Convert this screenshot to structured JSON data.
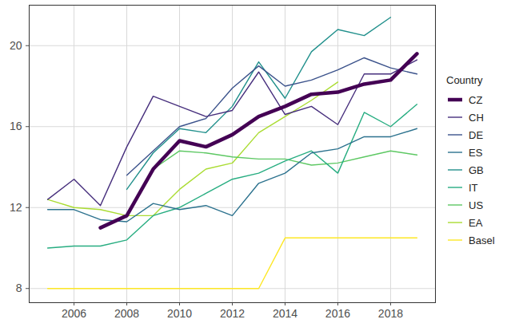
{
  "chart_data": {
    "type": "line",
    "legend_title": "Country",
    "legend": "right",
    "grid": true,
    "x": [
      2005,
      2006,
      2007,
      2008,
      2009,
      2010,
      2011,
      2012,
      2013,
      2014,
      2015,
      2016,
      2017,
      2018,
      2019
    ],
    "xlim": [
      2004.3,
      2019.7
    ],
    "xticks": [
      2006,
      2008,
      2010,
      2012,
      2014,
      2016,
      2018
    ],
    "ylim": [
      7.3,
      22.0
    ],
    "yticks": [
      8,
      12,
      16,
      20
    ],
    "series": [
      {
        "name": "CZ",
        "color": "#440154",
        "line_style": "bold",
        "values": [
          null,
          null,
          11.0,
          11.6,
          13.9,
          15.3,
          15.0,
          15.6,
          16.5,
          17.0,
          17.6,
          17.7,
          18.1,
          18.3,
          19.6
        ]
      },
      {
        "name": "CH",
        "color": "#472F7D",
        "line_style": "solid",
        "values": [
          12.4,
          13.4,
          12.1,
          15.0,
          17.5,
          17.0,
          16.5,
          16.8,
          18.7,
          16.6,
          17.0,
          16.1,
          18.6,
          18.6,
          19.3
        ]
      },
      {
        "name": "DE",
        "color": "#3B528B",
        "line_style": "solid",
        "values": [
          null,
          null,
          null,
          13.6,
          14.8,
          16.0,
          16.4,
          17.9,
          19.0,
          18.0,
          18.3,
          18.8,
          19.4,
          18.9,
          18.6
        ]
      },
      {
        "name": "ES",
        "color": "#2C728E",
        "line_style": "solid",
        "values": [
          11.9,
          11.9,
          11.4,
          11.3,
          12.2,
          11.9,
          12.1,
          11.6,
          13.2,
          13.7,
          14.7,
          14.9,
          15.5,
          15.5,
          15.9
        ]
      },
      {
        "name": "GB",
        "color": "#21908C",
        "line_style": "solid",
        "values": [
          null,
          null,
          null,
          12.9,
          14.7,
          15.9,
          15.7,
          17.0,
          19.2,
          17.4,
          19.7,
          20.8,
          20.5,
          21.4,
          null
        ]
      },
      {
        "name": "IT",
        "color": "#27AD81",
        "line_style": "solid",
        "values": [
          10.0,
          10.1,
          10.1,
          10.4,
          11.6,
          12.0,
          12.7,
          13.4,
          13.7,
          14.3,
          14.8,
          13.7,
          16.7,
          16.0,
          17.1
        ]
      },
      {
        "name": "US",
        "color": "#5DC863",
        "line_style": "solid",
        "values": [
          null,
          null,
          null,
          null,
          13.9,
          14.8,
          14.7,
          14.5,
          14.4,
          14.4,
          14.1,
          14.2,
          14.5,
          14.8,
          14.6
        ]
      },
      {
        "name": "EA",
        "color": "#AADC32",
        "line_style": "solid",
        "values": [
          12.4,
          12.0,
          11.9,
          11.6,
          11.6,
          12.9,
          13.9,
          14.2,
          15.7,
          16.5,
          17.3,
          18.2,
          null,
          null,
          null
        ]
      },
      {
        "name": "Basel",
        "color": "#FDE725",
        "line_style": "solid",
        "values": [
          8.0,
          8.0,
          8.0,
          8.0,
          8.0,
          8.0,
          8.0,
          8.0,
          8.0,
          10.5,
          10.5,
          10.5,
          10.5,
          10.5,
          10.5
        ]
      }
    ]
  }
}
